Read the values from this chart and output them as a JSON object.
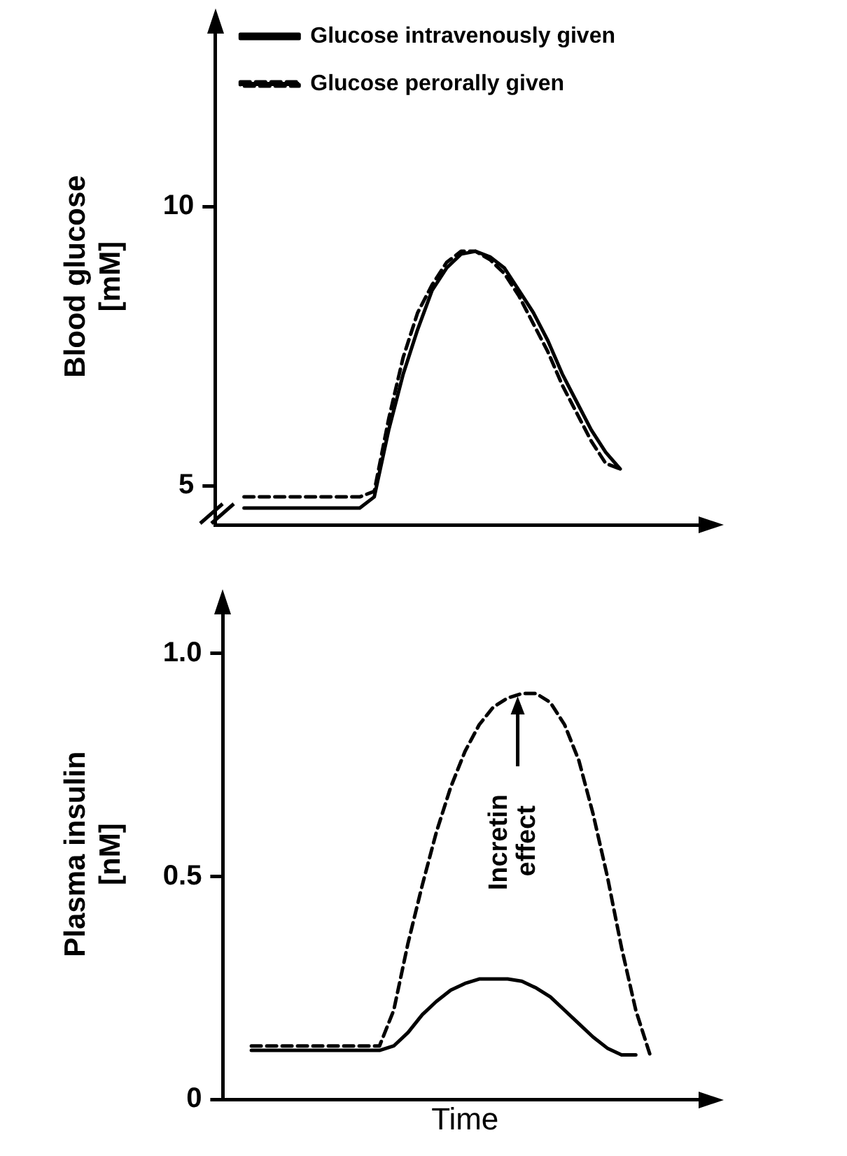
{
  "chart_data": [
    {
      "type": "line",
      "ylabel": "Blood glucose\n[mM]",
      "categories": [
        null,
        null,
        null,
        null,
        null,
        null,
        null,
        null,
        null,
        null,
        null,
        null,
        null,
        null,
        null,
        null,
        null,
        null,
        null,
        null,
        null,
        null,
        null,
        null,
        null,
        null,
        null,
        null,
        null,
        null,
        null,
        null,
        null,
        null,
        null
      ],
      "series": [
        {
          "name": "Glucose intravenously given",
          "color": "#000000",
          "line_style": "solid",
          "values": [
            null,
            null,
            4.6,
            4.6,
            4.6,
            4.6,
            4.6,
            4.6,
            4.6,
            4.6,
            4.6,
            4.8,
            6.0,
            7.0,
            7.8,
            8.5,
            8.9,
            9.15,
            9.2,
            9.1,
            8.9,
            8.5,
            8.1,
            7.6,
            7.0,
            6.5,
            6.0,
            5.6,
            5.3,
            null,
            null,
            null,
            null,
            null,
            null
          ]
        },
        {
          "name": "Glucose perorally given",
          "color": "#000000",
          "line_style": "dashed",
          "values": [
            null,
            null,
            4.8,
            4.8,
            4.8,
            4.8,
            4.8,
            4.8,
            4.8,
            4.8,
            4.8,
            4.9,
            6.2,
            7.3,
            8.1,
            8.6,
            9.0,
            9.2,
            9.2,
            9.05,
            8.8,
            8.4,
            7.9,
            7.4,
            6.8,
            6.3,
            5.8,
            5.4,
            5.3,
            null,
            null,
            null,
            null,
            null,
            null
          ]
        }
      ],
      "ylim": [
        4.3,
        13.2
      ],
      "yticks": [
        5,
        10
      ],
      "grid": false,
      "legend": "top left",
      "marker": "none",
      "tick_labels": "y"
    },
    {
      "type": "line",
      "ylabel": "Plasma insulin\n[nM]",
      "xlabel": "Time",
      "categories": [
        null,
        null,
        null,
        null,
        null,
        null,
        null,
        null,
        null,
        null,
        null,
        null,
        null,
        null,
        null,
        null,
        null,
        null,
        null,
        null,
        null,
        null,
        null,
        null,
        null,
        null,
        null,
        null,
        null,
        null,
        null,
        null,
        null,
        null,
        null
      ],
      "series": [
        {
          "color": "#000000",
          "line_style": "solid",
          "values": [
            null,
            null,
            0.11,
            0.11,
            0.11,
            0.11,
            0.11,
            0.11,
            0.11,
            0.11,
            0.11,
            0.11,
            0.12,
            0.15,
            0.19,
            0.22,
            0.245,
            0.26,
            0.27,
            0.27,
            0.27,
            0.265,
            0.25,
            0.23,
            0.2,
            0.17,
            0.14,
            0.115,
            0.1,
            0.1,
            null,
            null,
            null,
            null,
            null
          ]
        },
        {
          "color": "#000000",
          "line_style": "dashed",
          "values": [
            null,
            null,
            0.12,
            0.12,
            0.12,
            0.12,
            0.12,
            0.12,
            0.12,
            0.12,
            0.12,
            0.12,
            0.2,
            0.35,
            0.48,
            0.6,
            0.7,
            0.78,
            0.84,
            0.88,
            0.9,
            0.91,
            0.91,
            0.89,
            0.84,
            0.76,
            0.64,
            0.5,
            0.34,
            0.2,
            0.1,
            null,
            null,
            null,
            null
          ]
        }
      ],
      "ylim": [
        0,
        1.1
      ],
      "yticks": [
        0,
        0.5,
        {
          "value": 1.0,
          "label": "1.0"
        }
      ],
      "grid": false,
      "legend": false,
      "marker": "none",
      "tick_labels": "y",
      "annotations": [
        "Incretin effect"
      ]
    }
  ]
}
